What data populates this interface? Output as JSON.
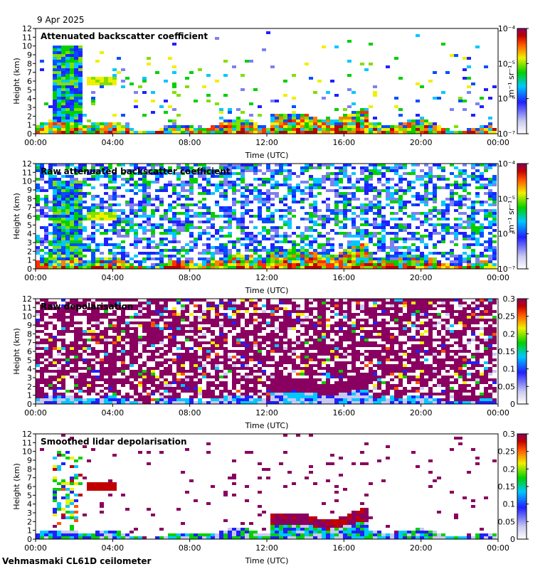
{
  "date_label": "9 Apr 2025",
  "footer": "Vehmasmaki CL61D ceilometer",
  "chart_data": [
    {
      "type": "heatmap",
      "title": "Attenuated backscatter coefficient",
      "xlabel": "Time (UTC)",
      "ylabel": "Height (km)",
      "x_ticks": [
        "00:00",
        "04:00",
        "08:00",
        "12:00",
        "16:00",
        "20:00",
        "00:00"
      ],
      "y_ticks": [
        "0",
        "1",
        "2",
        "3",
        "4",
        "5",
        "6",
        "7",
        "8",
        "9",
        "10",
        "11",
        "12"
      ],
      "ylim": [
        0,
        12
      ],
      "colorbar": {
        "scale": "log",
        "unit": "m⁻¹ sr⁻¹",
        "ticks": [
          "10⁻⁷",
          "10⁻⁶",
          "10⁻⁵",
          "10⁻⁴"
        ],
        "range": [
          1e-07,
          0.0001
        ]
      }
    },
    {
      "type": "heatmap",
      "title": "Raw attenuated backscatter coefficient",
      "xlabel": "Time (UTC)",
      "ylabel": "Height (km)",
      "x_ticks": [
        "00:00",
        "04:00",
        "08:00",
        "12:00",
        "16:00",
        "20:00",
        "00:00"
      ],
      "y_ticks": [
        "0",
        "1",
        "2",
        "3",
        "4",
        "5",
        "6",
        "7",
        "8",
        "9",
        "10",
        "11",
        "12"
      ],
      "ylim": [
        0,
        12
      ],
      "colorbar": {
        "scale": "log",
        "unit": "m⁻¹ sr⁻¹",
        "ticks": [
          "10⁻⁷",
          "10⁻⁶",
          "10⁻⁵",
          "10⁻⁴"
        ],
        "range": [
          1e-07,
          0.0001
        ]
      }
    },
    {
      "type": "heatmap",
      "title": "Raw depolarisation",
      "xlabel": "Time (UTC)",
      "ylabel": "Height (km)",
      "x_ticks": [
        "00:00",
        "04:00",
        "08:00",
        "12:00",
        "16:00",
        "20:00",
        "00:00"
      ],
      "y_ticks": [
        "0",
        "1",
        "2",
        "3",
        "4",
        "5",
        "6",
        "7",
        "8",
        "9",
        "10",
        "11",
        "12"
      ],
      "ylim": [
        0,
        12
      ],
      "colorbar": {
        "scale": "linear",
        "unit": "",
        "ticks": [
          "0",
          "0.05",
          "0.1",
          "0.15",
          "0.2",
          "0.25",
          "0.3"
        ],
        "range": [
          0,
          0.3
        ]
      }
    },
    {
      "type": "heatmap",
      "title": "Smoothed lidar depolarisation",
      "xlabel": "Time (UTC)",
      "ylabel": "Height (km)",
      "x_ticks": [
        "00:00",
        "04:00",
        "08:00",
        "12:00",
        "16:00",
        "20:00",
        "00:00"
      ],
      "y_ticks": [
        "0",
        "1",
        "2",
        "3",
        "4",
        "5",
        "6",
        "7",
        "8",
        "9",
        "10",
        "11",
        "12"
      ],
      "ylim": [
        0,
        12
      ],
      "colorbar": {
        "scale": "linear",
        "unit": "",
        "ticks": [
          "0",
          "0.05",
          "0.1",
          "0.15",
          "0.2",
          "0.25",
          "0.3"
        ],
        "range": [
          0,
          0.3
        ]
      }
    }
  ]
}
